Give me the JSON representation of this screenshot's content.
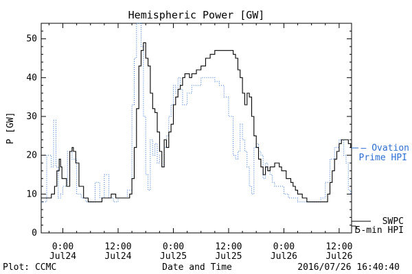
{
  "chart_data": {
    "type": "line",
    "title": "Hemispheric Power [GW]",
    "xlabel": "Date and Time",
    "ylabel": "P [GW]",
    "ylim": [
      0,
      54
    ],
    "xlim": [
      -4.7,
      62.7
    ],
    "x_units": "hours since 2016-07-24 00:00",
    "yticks": [
      0,
      10,
      20,
      30,
      40,
      50
    ],
    "xticks": [
      {
        "x": 0,
        "top": "0:00",
        "bottom": "Jul24"
      },
      {
        "x": 12,
        "top": "12:00",
        "bottom": "Jul24"
      },
      {
        "x": 24,
        "top": "0:00",
        "bottom": "Jul25"
      },
      {
        "x": 36,
        "top": "12:00",
        "bottom": "Jul25"
      },
      {
        "x": 48,
        "top": "0:00",
        "bottom": "Jul26"
      },
      {
        "x": 60,
        "top": "12:00",
        "bottom": "Jul26"
      }
    ],
    "series": [
      {
        "name": "SWPC 5-min HPI",
        "color": "#000000",
        "style": "solid",
        "x": [
          -4.7,
          -3.5,
          -2.5,
          -1.8,
          -1.3,
          -0.8,
          -0.5,
          -0.2,
          0.3,
          0.8,
          1.5,
          2.0,
          2.3,
          2.8,
          3.5,
          4.5,
          5.5,
          6.5,
          7.5,
          8.5,
          9.5,
          10.5,
          11.5,
          12.5,
          13.5,
          14.0,
          14.5,
          15.0,
          15.5,
          16.0,
          16.5,
          17.0,
          17.5,
          18.0,
          18.5,
          19.0,
          19.5,
          20.0,
          20.5,
          21.0,
          21.5,
          22.0,
          22.5,
          23.0,
          23.5,
          24.0,
          24.5,
          25.0,
          25.5,
          26.0,
          26.5,
          27.0,
          27.5,
          28.0,
          28.5,
          29.0,
          29.5,
          30.0,
          31.0,
          32.0,
          33.0,
          34.0,
          35.0,
          36.0,
          37.0,
          37.5,
          38.0,
          38.5,
          39.0,
          39.5,
          40.0,
          40.5,
          41.0,
          41.5,
          42.0,
          42.5,
          43.0,
          43.5,
          44.0,
          44.5,
          45.0,
          45.5,
          46.0,
          46.5,
          47.0,
          47.5,
          48.0,
          48.5,
          49.0,
          49.5,
          50.0,
          50.5,
          51.0,
          51.5,
          52.0,
          53.0,
          54.0,
          55.0,
          56.0,
          57.0,
          57.5,
          58.0,
          58.5,
          59.0,
          59.5,
          60.0,
          60.5,
          61.0,
          61.5,
          62.0,
          62.5
        ],
        "y": [
          9,
          9,
          10,
          12,
          16,
          19,
          17,
          14,
          14,
          12,
          21,
          22,
          21,
          18,
          12,
          9,
          8,
          8,
          8,
          9,
          9,
          10,
          9,
          9,
          9,
          9,
          10,
          14,
          22,
          32,
          43,
          47,
          49,
          45,
          43,
          36,
          32,
          31,
          26,
          21,
          17,
          24,
          22,
          26,
          28,
          33,
          35,
          37,
          38,
          40,
          41,
          41,
          40,
          41,
          41,
          42,
          42,
          43,
          45,
          46,
          47,
          47,
          47,
          47,
          46,
          45,
          42,
          40,
          36,
          33,
          36,
          35,
          30,
          25,
          22,
          19,
          17,
          15,
          17,
          16,
          17,
          17,
          18,
          18,
          17,
          16,
          16,
          14,
          14,
          13,
          12,
          11,
          10,
          10,
          9,
          8,
          8,
          8,
          8,
          8,
          10,
          13,
          16,
          19,
          21,
          23,
          24,
          24,
          24,
          23,
          22
        ]
      },
      {
        "name": "Ovation Prime HPI",
        "color": "#2a6fd6",
        "style": "dotted",
        "x": [
          -4.7,
          -3.5,
          -2.5,
          -2.0,
          -1.5,
          -1.0,
          -0.5,
          0.0,
          1.0,
          2.0,
          3.0,
          4.0,
          5.0,
          6.0,
          7.0,
          8.0,
          9.0,
          10.0,
          11.0,
          12.0,
          13.0,
          14.0,
          15.0,
          15.5,
          16.0,
          16.5,
          17.0,
          17.5,
          18.0,
          18.5,
          19.0,
          19.5,
          20.0,
          20.5,
          21.0,
          21.5,
          22.0,
          22.5,
          23.0,
          23.5,
          24.0,
          24.5,
          25.0,
          25.5,
          26.0,
          27.0,
          28.0,
          29.0,
          30.0,
          31.0,
          32.0,
          33.0,
          34.0,
          35.0,
          36.0,
          37.0,
          37.5,
          38.0,
          38.5,
          39.0,
          39.5,
          40.0,
          40.5,
          41.0,
          41.5,
          42.0,
          42.5,
          43.0,
          43.5,
          44.0,
          44.5,
          45.0,
          45.5,
          46.0,
          47.0,
          48.0,
          49.0,
          50.0,
          51.0,
          52.0,
          53.0,
          54.0,
          55.0,
          56.0,
          57.0,
          58.0,
          59.0,
          60.0,
          60.5,
          61.0,
          61.5,
          62.0,
          62.5
        ],
        "y": [
          8,
          20,
          17,
          29,
          17,
          9,
          10,
          12,
          21,
          19,
          10,
          9,
          8,
          8,
          13,
          9,
          15,
          9,
          8,
          9,
          9,
          11,
          33,
          45,
          55,
          56,
          48,
          30,
          15,
          11,
          24,
          20,
          23,
          18,
          20,
          17,
          22,
          25,
          30,
          33,
          38,
          36,
          40,
          37,
          33,
          36,
          38,
          38,
          40,
          40,
          40,
          39,
          38,
          35,
          30,
          20,
          19,
          21,
          28,
          24,
          21,
          17,
          12,
          10,
          22,
          23,
          21,
          20,
          14,
          18,
          16,
          15,
          13,
          12,
          12,
          10,
          9,
          9,
          8,
          8,
          8,
          8,
          8,
          9,
          13,
          19,
          22,
          24,
          24,
          20,
          18,
          11,
          10
        ]
      }
    ],
    "annotations": {
      "right_ovation": [
        "— Ovation",
        "Prime HPI"
      ],
      "right_swpc": [
        "SWPC",
        "5-min HPI"
      ],
      "footer_left": "Plot: CCMC",
      "footer_right": "2016/07/26 16:40:40"
    },
    "colors": {
      "swpc": "#000000",
      "ovation": "#2a6fd6"
    }
  }
}
